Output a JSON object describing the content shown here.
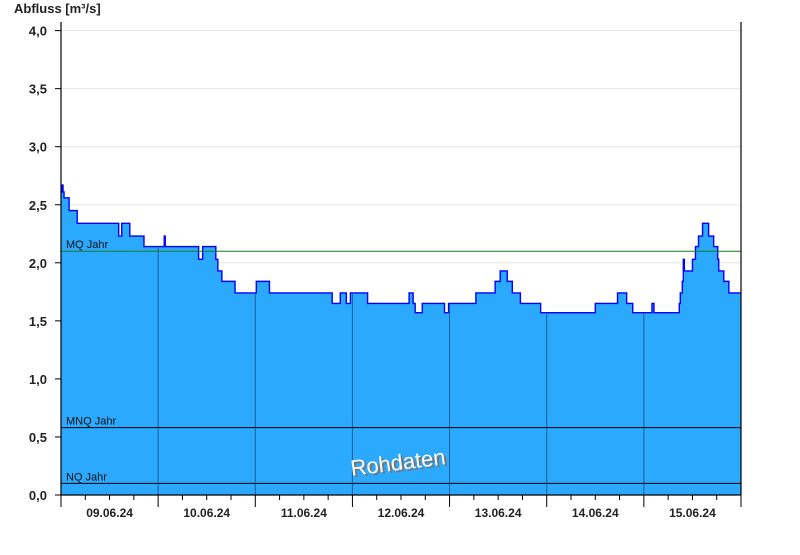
{
  "chart_data": {
    "type": "area",
    "ylabel": "Abfluss [m³/s]",
    "xlim": [
      "2024-06-09 00:00",
      "2024-06-16 00:00"
    ],
    "ylim": [
      0,
      4.0
    ],
    "yticks": [
      "0,0",
      "0,5",
      "1,0",
      "1,5",
      "2,0",
      "2,5",
      "3,0",
      "3,5",
      "4,0"
    ],
    "xtick_labels": [
      "09.06.24",
      "10.06.24",
      "11.06.24",
      "12.06.24",
      "13.06.24",
      "14.06.24",
      "15.06.24"
    ],
    "grid": true,
    "watermark": "Rohdaten",
    "colors": {
      "fill": "#2aa9ff",
      "line": "#0000ff",
      "mq": "#1a7a1a",
      "ref": "#000000",
      "day_separator": "#1d5e8c",
      "grid": "#e6e6e6"
    },
    "reference_lines": [
      {
        "label": "MQ Jahr",
        "value": 2.1
      },
      {
        "label": "MNQ Jahr",
        "value": 0.58
      },
      {
        "label": "NQ Jahr",
        "value": 0.1
      }
    ],
    "series": [
      {
        "step": true,
        "points": [
          [
            "2024-06-09 00:00",
            2.61
          ],
          [
            "2024-06-09 00:15",
            2.67
          ],
          [
            "2024-06-09 00:30",
            2.61
          ],
          [
            "2024-06-09 00:45",
            2.56
          ],
          [
            "2024-06-09 02:00",
            2.45
          ],
          [
            "2024-06-09 04:00",
            2.34
          ],
          [
            "2024-06-09 14:15",
            2.23
          ],
          [
            "2024-06-09 15:00",
            2.34
          ],
          [
            "2024-06-09 17:00",
            2.23
          ],
          [
            "2024-06-09 20:30",
            2.14
          ],
          [
            "2024-06-10 01:30",
            2.23
          ],
          [
            "2024-06-10 01:45",
            2.14
          ],
          [
            "2024-06-10 10:00",
            2.03
          ],
          [
            "2024-06-10 11:00",
            2.14
          ],
          [
            "2024-06-10 14:15",
            2.03
          ],
          [
            "2024-06-10 14:45",
            1.93
          ],
          [
            "2024-06-10 15:45",
            1.84
          ],
          [
            "2024-06-10 19:00",
            1.74
          ],
          [
            "2024-06-11 00:15",
            1.84
          ],
          [
            "2024-06-11 03:30",
            1.74
          ],
          [
            "2024-06-11 19:00",
            1.65
          ],
          [
            "2024-06-11 21:00",
            1.74
          ],
          [
            "2024-06-11 22:30",
            1.65
          ],
          [
            "2024-06-11 23:30",
            1.74
          ],
          [
            "2024-06-12 03:45",
            1.65
          ],
          [
            "2024-06-12 14:00",
            1.74
          ],
          [
            "2024-06-12 15:00",
            1.65
          ],
          [
            "2024-06-12 15:30",
            1.57
          ],
          [
            "2024-06-12 17:15",
            1.65
          ],
          [
            "2024-06-12 22:45",
            1.57
          ],
          [
            "2024-06-12 23:45",
            1.65
          ],
          [
            "2024-06-13 06:30",
            1.74
          ],
          [
            "2024-06-13 11:15",
            1.84
          ],
          [
            "2024-06-13 12:30",
            1.93
          ],
          [
            "2024-06-13 14:15",
            1.84
          ],
          [
            "2024-06-13 15:30",
            1.74
          ],
          [
            "2024-06-13 17:30",
            1.65
          ],
          [
            "2024-06-13 22:30",
            1.57
          ],
          [
            "2024-06-14 12:00",
            1.65
          ],
          [
            "2024-06-14 17:30",
            1.74
          ],
          [
            "2024-06-14 19:45",
            1.65
          ],
          [
            "2024-06-14 21:15",
            1.57
          ],
          [
            "2024-06-15 02:00",
            1.65
          ],
          [
            "2024-06-15 02:30",
            1.57
          ],
          [
            "2024-06-15 08:45",
            1.65
          ],
          [
            "2024-06-15 09:00",
            1.74
          ],
          [
            "2024-06-15 09:30",
            1.84
          ],
          [
            "2024-06-15 09:45",
            2.03
          ],
          [
            "2024-06-15 10:00",
            1.93
          ],
          [
            "2024-06-15 12:00",
            2.03
          ],
          [
            "2024-06-15 12:45",
            2.14
          ],
          [
            "2024-06-15 13:30",
            2.23
          ],
          [
            "2024-06-15 14:30",
            2.34
          ],
          [
            "2024-06-15 16:00",
            2.23
          ],
          [
            "2024-06-15 17:15",
            2.14
          ],
          [
            "2024-06-15 18:15",
            2.03
          ],
          [
            "2024-06-15 18:30",
            1.93
          ],
          [
            "2024-06-15 19:45",
            1.84
          ],
          [
            "2024-06-15 21:00",
            1.74
          ],
          [
            "2024-06-16 00:00",
            1.74
          ]
        ]
      }
    ]
  }
}
